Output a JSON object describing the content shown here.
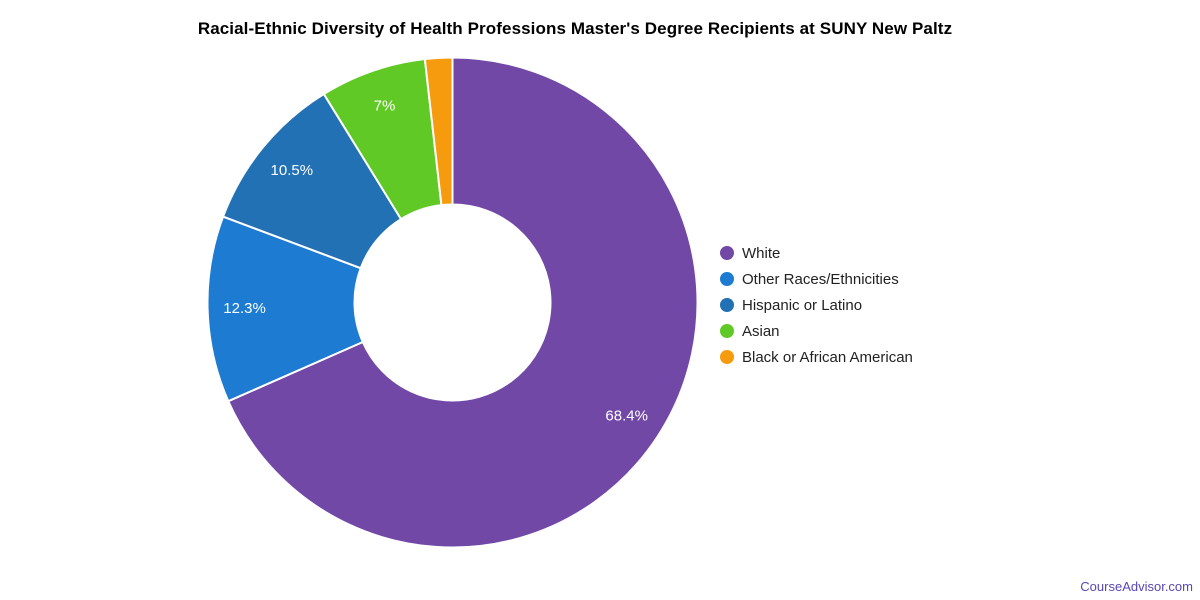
{
  "title": "Racial-Ethnic Diversity of Health Professions Master's Degree Recipients at SUNY New Paltz",
  "attribution": {
    "label": "CourseAdvisor.com",
    "color": "#5a46b4"
  },
  "chart_data": {
    "type": "pie",
    "subtype": "donut",
    "title": "Racial-Ethnic Diversity of Health Professions Master's Degree Recipients at SUNY New Paltz",
    "unit": "percent",
    "direction": "clockwise",
    "start_angle_deg": 0,
    "inner_radius_ratio": 0.4,
    "legend_position": "right",
    "slice_border_color": "#ffffff",
    "label_text_color": "#ffffff",
    "slices": [
      {
        "label": "White",
        "value": 68.4,
        "display": "68.4%",
        "color": "#7248a7"
      },
      {
        "label": "Other Races/Ethnicities",
        "value": 12.3,
        "display": "12.3%",
        "color": "#1d7cd1"
      },
      {
        "label": "Hispanic or Latino",
        "value": 10.5,
        "display": "10.5%",
        "color": "#2271b4"
      },
      {
        "label": "Asian",
        "value": 7,
        "display": "7%",
        "color": "#61c926"
      },
      {
        "label": "Black or African American",
        "value": 1.8,
        "display": "",
        "color": "#f79b0e"
      }
    ]
  }
}
